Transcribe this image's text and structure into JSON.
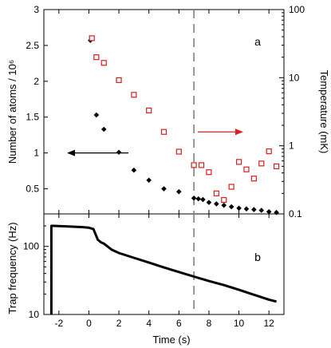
{
  "chart_data": [
    {
      "panel": "a",
      "type": "scatter",
      "xlim": [
        -3,
        13
      ],
      "xticks": [
        -2,
        0,
        2,
        4,
        6,
        8,
        10,
        12
      ],
      "left_axis": {
        "label": "Number of atoms / 10⁶",
        "scale": "linear",
        "ylim": [
          0.15,
          3.0
        ],
        "ticks": [
          {
            "value": 0.5,
            "label": "0.5"
          },
          {
            "value": 1,
            "label": "1"
          },
          {
            "value": 1.5,
            "label": "1.5"
          },
          {
            "value": 2,
            "label": "2"
          },
          {
            "value": 2.5,
            "label": "2.5"
          },
          {
            "value": 3,
            "label": "3"
          }
        ]
      },
      "right_axis": {
        "label": "Temperature (mK)",
        "scale": "log",
        "ylim": [
          0.1,
          100
        ],
        "ticks": [
          {
            "value": 0.1,
            "label": "0.1"
          },
          {
            "value": 1,
            "label": "1"
          },
          {
            "value": 10,
            "label": "10"
          },
          {
            "value": 100,
            "label": "100"
          }
        ]
      },
      "series": [
        {
          "axis": "left",
          "marker": "filled-diamond",
          "color": "#000000",
          "x": [
            0.1,
            0.5,
            1.0,
            2.0,
            3.0,
            4.0,
            5.0,
            6.0,
            7.0,
            7.3,
            7.6,
            8.0,
            8.5,
            9.0,
            9.5,
            10.0,
            10.5,
            11.0,
            11.5,
            12.0,
            12.5
          ],
          "y": [
            2.57,
            1.53,
            1.33,
            1.01,
            0.76,
            0.62,
            0.5,
            0.46,
            0.37,
            0.36,
            0.35,
            0.31,
            0.29,
            0.27,
            0.25,
            0.23,
            0.22,
            0.21,
            0.2,
            0.18,
            0.17
          ]
        },
        {
          "axis": "right",
          "marker": "open-square",
          "color": "#d42020",
          "x": [
            0.2,
            0.5,
            1.0,
            2.0,
            3.0,
            4.0,
            5.0,
            6.0,
            7.0,
            7.5,
            8.0,
            8.5,
            9.0,
            9.5,
            10.0,
            10.5,
            11.0,
            11.5,
            12.0,
            12.5
          ],
          "y": [
            38.0,
            20.0,
            16.5,
            9.2,
            5.6,
            3.3,
            1.6,
            0.82,
            0.52,
            0.52,
            0.41,
            0.2,
            0.16,
            0.25,
            0.58,
            0.45,
            0.33,
            0.55,
            0.83,
            0.5
          ]
        }
      ],
      "annotations": [
        {
          "type": "arrow",
          "points_to": "left axis",
          "color": "#000000"
        },
        {
          "type": "arrow",
          "points_to": "right axis",
          "color": "#d42020"
        },
        {
          "type": "dashed-vertical-line",
          "x": 7.0,
          "color": "#808080"
        }
      ]
    },
    {
      "panel": "b",
      "type": "line",
      "xlabel": "Time (s)",
      "xlim": [
        -3,
        13
      ],
      "xticks": [
        {
          "value": -2,
          "label": "-2"
        },
        {
          "value": 0,
          "label": "0"
        },
        {
          "value": 2,
          "label": "2"
        },
        {
          "value": 4,
          "label": "4"
        },
        {
          "value": 6,
          "label": "6"
        },
        {
          "value": 8,
          "label": "8"
        },
        {
          "value": 10,
          "label": "10"
        },
        {
          "value": 12,
          "label": "12"
        }
      ],
      "ylabel": "Trap frequency (Hz)",
      "yscale": "log",
      "ylim": [
        10,
        300
      ],
      "yticks": [
        {
          "value": 10,
          "label": "10"
        },
        {
          "value": 100,
          "label": "100"
        }
      ],
      "series": [
        {
          "color": "#000000",
          "x": [
            -2.5,
            -2.5,
            -2.3,
            -1.5,
            -0.5,
            0.0,
            0.3,
            0.45,
            0.6,
            0.8,
            1.0,
            1.5,
            2.0,
            3.0,
            4.0,
            5.0,
            6.0,
            7.0,
            8.0,
            9.0,
            10.0,
            11.0,
            12.0,
            12.5
          ],
          "y": [
            10,
            200,
            200,
            197,
            192,
            188,
            180,
            150,
            125,
            115,
            110,
            90,
            80,
            68,
            58,
            49,
            42,
            36,
            31,
            27,
            23,
            19.5,
            16.5,
            15.5
          ]
        }
      ],
      "annotations": [
        {
          "type": "dashed-vertical-line",
          "x": 7.0,
          "color": "#808080"
        }
      ]
    }
  ],
  "labels": {
    "panel_a": "a",
    "panel_b": "b",
    "left_ylabel": "Number of atoms / 10⁶",
    "right_ylabel": "Temperature (mK)",
    "b_ylabel": "Trap frequency (Hz)",
    "xlabel": "Time (s)"
  }
}
